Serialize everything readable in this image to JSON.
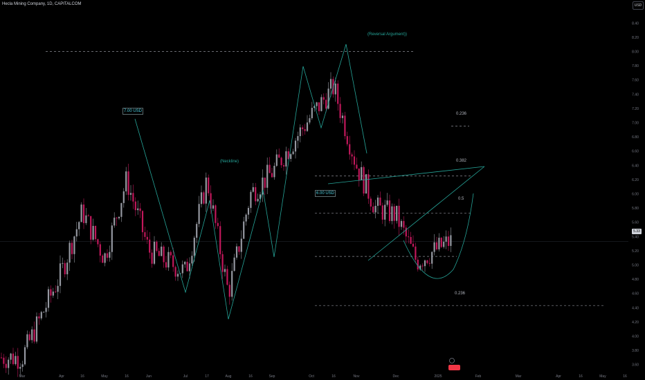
{
  "header": {
    "symbol_title": "Hecla Mining Company, 1D, CAPITALCOM",
    "currency_button": "USD"
  },
  "price_scale": {
    "current_price_label": "5.33"
  },
  "annotations": {
    "reversal": "(Reversal Argument))",
    "neckline": "(Neckline)",
    "target_700": "7.00 USD",
    "target_600": "6.00 USD",
    "fib_0236_top": "0.236",
    "fib_0382": "0.382",
    "fib_05": "0.5",
    "fib_0236_bottom": "0.236"
  },
  "colors": {
    "background": "#000000",
    "bull_candle": "#9598a1",
    "bear_candle": "#c2185b",
    "pattern_line": "#26a69a",
    "dashed_level": "#b2b5be",
    "axis_text": "#787b86"
  },
  "chart_data": {
    "type": "candlestick",
    "title": "Hecla Mining Company, 1D, CAPITALCOM",
    "ylabel": "USD",
    "ylim": [
      3.5,
      8.5
    ],
    "y_ticks": [
      "3.60",
      "3.80",
      "4.00",
      "4.20",
      "4.40",
      "4.60",
      "4.80",
      "5.00",
      "5.20",
      "5.40",
      "5.60",
      "5.80",
      "6.00",
      "6.20",
      "6.40",
      "6.60",
      "6.80",
      "7.00",
      "7.20",
      "7.40",
      "7.60",
      "7.80",
      "8.00",
      "8.20",
      "8.40"
    ],
    "x_ticks": [
      "Mar",
      "Apr",
      "16",
      "May",
      "16",
      "Jun",
      "Jul",
      "17",
      "Aug",
      "16",
      "Sep",
      "Oct",
      "16",
      "Nov",
      "Dec",
      "2025",
      "Feb",
      "Mar",
      "Apr",
      "16",
      "May",
      "16"
    ],
    "last_price": 5.33,
    "levels": [
      {
        "name": "reversal-level",
        "value": 8.0
      },
      {
        "name": "fib-0.236-top",
        "value": 6.95
      },
      {
        "name": "fib-0.382",
        "value": 6.25
      },
      {
        "name": "fib-0.5",
        "value": 5.73
      },
      {
        "name": "neckline-level",
        "value": 5.12
      },
      {
        "name": "fib-0.236-bottom",
        "value": 4.43
      }
    ],
    "approx_path": [
      [
        "Mar",
        3.7
      ],
      [
        "Apr",
        4.9
      ],
      [
        "Apr 16",
        5.75
      ],
      [
        "May",
        5.1
      ],
      [
        "May 16",
        6.2
      ],
      [
        "Jun",
        5.2
      ],
      [
        "Jul",
        4.9
      ],
      [
        "Jul 17",
        6.2
      ],
      [
        "Aug",
        4.6
      ],
      [
        "Aug 16",
        6.0
      ],
      [
        "Sep",
        6.3
      ],
      [
        "Oct",
        7.1
      ],
      [
        "Oct 16",
        7.5
      ],
      [
        "Nov",
        6.4
      ],
      [
        "Nov 16",
        5.8
      ],
      [
        "Dec",
        5.7
      ],
      [
        "Dec 16",
        5.05
      ],
      [
        "2025",
        5.33
      ]
    ]
  }
}
